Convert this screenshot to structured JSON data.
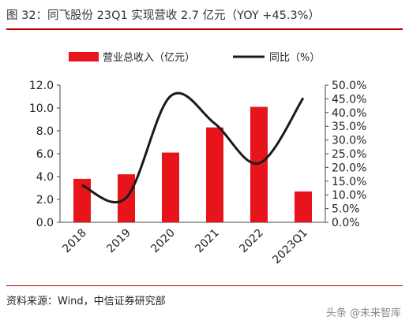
{
  "header": {
    "title": "图 32：同飞股份 23Q1 实现营收 2.7 亿元（YOY +45.3%）"
  },
  "footer": {
    "source": "资料来源：Wind，中信证券研究部",
    "watermark": "头条 @未来智库"
  },
  "colors": {
    "accent": "#c00000",
    "bar": "#e8141c",
    "line": "#1a1a1a"
  },
  "chart_data": {
    "type": "bar",
    "categories": [
      "2018",
      "2019",
      "2020",
      "2021",
      "2022",
      "2023Q1"
    ],
    "series": [
      {
        "name": "营业总收入（亿元）",
        "type": "bar",
        "axis": "left",
        "values": [
          3.8,
          4.2,
          6.1,
          8.3,
          10.1,
          2.7
        ]
      },
      {
        "name": "同比（%）",
        "type": "line",
        "axis": "right",
        "values": [
          13.5,
          9.0,
          46.0,
          36.0,
          21.5,
          45.3
        ]
      }
    ],
    "yleft": {
      "ylim": [
        0,
        12
      ],
      "ticks": [
        "0.0",
        "2.0",
        "4.0",
        "6.0",
        "8.0",
        "10.0",
        "12.0"
      ]
    },
    "yright": {
      "ylim": [
        0,
        50
      ],
      "ticks": [
        "0.0%",
        "5.0%",
        "10.0%",
        "15.0%",
        "20.0%",
        "25.0%",
        "30.0%",
        "35.0%",
        "40.0%",
        "45.0%",
        "50.0%"
      ]
    },
    "legend": "top",
    "grid": false
  }
}
